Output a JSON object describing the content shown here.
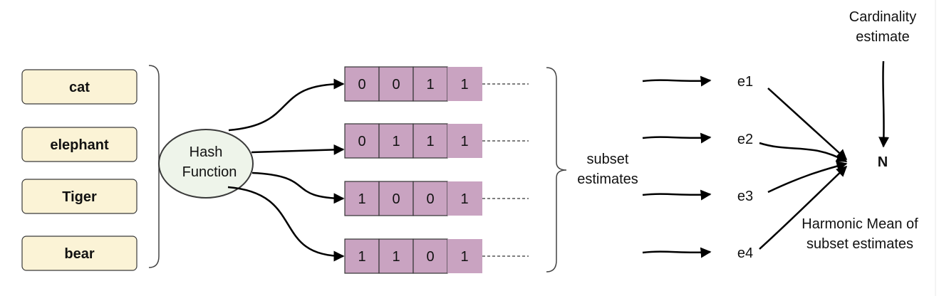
{
  "words": [
    "cat",
    "elephant",
    "Tiger",
    "bear"
  ],
  "hash_function": {
    "line1": "Hash",
    "line2": "Function"
  },
  "registers": [
    {
      "bits": [
        "0",
        "0",
        "1",
        "1"
      ]
    },
    {
      "bits": [
        "0",
        "1",
        "1",
        "1"
      ]
    },
    {
      "bits": [
        "1",
        "0",
        "0",
        "1"
      ]
    },
    {
      "bits": [
        "1",
        "1",
        "0",
        "1"
      ]
    }
  ],
  "subset_label": {
    "line1": "subset",
    "line2": "estimates"
  },
  "estimates": [
    "e1",
    "e2",
    "e3",
    "e4"
  ],
  "result": "N",
  "cardinality_label": {
    "line1": "Cardinality",
    "line2": "estimate"
  },
  "harmonic_label": {
    "line1": "Harmonic Mean of",
    "line2": "subset estimates"
  },
  "colors": {
    "word_fill": "#fbf3d6",
    "register_fill": "#c9a3c1",
    "hash_fill": "#eef4ea"
  }
}
